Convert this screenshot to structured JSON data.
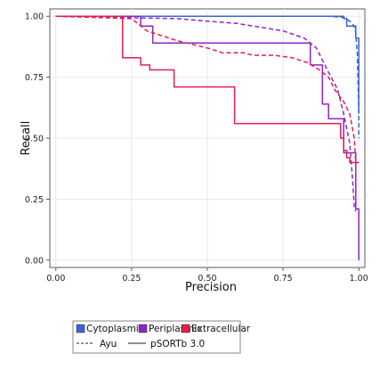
{
  "chart_data": {
    "type": "line",
    "title": "",
    "xlabel": "Precision",
    "ylabel": "Recall",
    "xlim": [
      -0.02,
      1.02
    ],
    "ylim": [
      -0.03,
      1.03
    ],
    "xticks": [
      "0.00",
      "0.25",
      "0.50",
      "0.75",
      "1.00"
    ],
    "xtick_values": [
      0,
      0.25,
      0.5,
      0.75,
      1.0
    ],
    "yticks": [
      "0.00",
      "0.25",
      "0.50",
      "0.75",
      "1.00"
    ],
    "ytick_values": [
      0,
      0.25,
      0.5,
      0.75,
      1.0
    ],
    "grid": true,
    "legend_placement": "below",
    "legend_classes": [
      {
        "name": "Cytoplasmic",
        "color": "#3a66d4"
      },
      {
        "name": "Periplasmic",
        "color": "#8e24c9"
      },
      {
        "name": "Extracellular",
        "color": "#e31e4a"
      }
    ],
    "legend_styles": [
      {
        "name": "Ayu",
        "dash": "dashed"
      },
      {
        "name": "pSORTb 3.0",
        "dash": "solid"
      }
    ],
    "series": [
      {
        "class": "Cytoplasmic",
        "method": "pSORTb 3.0",
        "color": "#3a66d4",
        "style": "solid",
        "points": [
          [
            0.0,
            1.0
          ],
          [
            0.95,
            1.0
          ],
          [
            0.95,
            0.99
          ],
          [
            0.96,
            0.99
          ],
          [
            0.96,
            0.96
          ],
          [
            0.99,
            0.96
          ],
          [
            0.99,
            0.91
          ],
          [
            1.0,
            0.91
          ],
          [
            1.0,
            0.6
          ]
        ]
      },
      {
        "class": "Cytoplasmic",
        "method": "Ayu",
        "color": "#3a66d4",
        "style": "dashed",
        "points": [
          [
            0.0,
            1.0
          ],
          [
            0.9,
            1.0
          ],
          [
            0.95,
            0.995
          ],
          [
            0.97,
            0.98
          ],
          [
            0.985,
            0.96
          ],
          [
            0.99,
            0.93
          ],
          [
            0.995,
            0.85
          ],
          [
            1.0,
            0.6
          ],
          [
            1.0,
            0.5
          ]
        ]
      },
      {
        "class": "Periplasmic",
        "method": "pSORTb 3.0",
        "color": "#8e24c9",
        "style": "solid",
        "points": [
          [
            0.0,
            1.0
          ],
          [
            0.28,
            1.0
          ],
          [
            0.28,
            0.96
          ],
          [
            0.32,
            0.96
          ],
          [
            0.32,
            0.89
          ],
          [
            0.84,
            0.89
          ],
          [
            0.84,
            0.8
          ],
          [
            0.88,
            0.8
          ],
          [
            0.88,
            0.64
          ],
          [
            0.9,
            0.64
          ],
          [
            0.9,
            0.58
          ],
          [
            0.95,
            0.58
          ],
          [
            0.95,
            0.44
          ],
          [
            0.99,
            0.44
          ],
          [
            0.99,
            0.21
          ],
          [
            1.0,
            0.21
          ],
          [
            1.0,
            0.0
          ]
        ]
      },
      {
        "class": "Periplasmic",
        "method": "Ayu",
        "color": "#8e24c9",
        "style": "dashed",
        "points": [
          [
            0.0,
            1.0
          ],
          [
            0.4,
            0.99
          ],
          [
            0.6,
            0.97
          ],
          [
            0.75,
            0.94
          ],
          [
            0.82,
            0.91
          ],
          [
            0.86,
            0.87
          ],
          [
            0.88,
            0.82
          ],
          [
            0.9,
            0.77
          ],
          [
            0.93,
            0.7
          ],
          [
            0.95,
            0.6
          ],
          [
            0.97,
            0.48
          ],
          [
            0.98,
            0.32
          ],
          [
            0.985,
            0.22
          ],
          [
            0.99,
            0.2
          ]
        ]
      },
      {
        "class": "Extracellular",
        "method": "pSORTb 3.0",
        "color": "#e31e4a",
        "style": "solid",
        "points": [
          [
            0.0,
            1.0
          ],
          [
            0.22,
            1.0
          ],
          [
            0.22,
            0.83
          ],
          [
            0.28,
            0.83
          ],
          [
            0.28,
            0.8
          ],
          [
            0.31,
            0.8
          ],
          [
            0.31,
            0.78
          ],
          [
            0.39,
            0.78
          ],
          [
            0.39,
            0.71
          ],
          [
            0.59,
            0.71
          ],
          [
            0.59,
            0.56
          ],
          [
            0.94,
            0.56
          ],
          [
            0.94,
            0.5
          ],
          [
            0.95,
            0.5
          ],
          [
            0.95,
            0.45
          ],
          [
            0.96,
            0.45
          ],
          [
            0.96,
            0.42
          ],
          [
            0.97,
            0.42
          ],
          [
            0.97,
            0.4
          ],
          [
            1.0,
            0.4
          ]
        ]
      },
      {
        "class": "Extracellular",
        "method": "Ayu",
        "color": "#e31e4a",
        "style": "dashed",
        "points": [
          [
            0.0,
            1.0
          ],
          [
            0.25,
            0.99
          ],
          [
            0.3,
            0.94
          ],
          [
            0.4,
            0.9
          ],
          [
            0.5,
            0.87
          ],
          [
            0.55,
            0.85
          ],
          [
            0.62,
            0.85
          ],
          [
            0.65,
            0.84
          ],
          [
            0.72,
            0.84
          ],
          [
            0.78,
            0.83
          ],
          [
            0.83,
            0.81
          ],
          [
            0.87,
            0.78
          ],
          [
            0.9,
            0.75
          ],
          [
            0.92,
            0.7
          ],
          [
            0.95,
            0.65
          ],
          [
            0.97,
            0.6
          ],
          [
            0.985,
            0.5
          ],
          [
            0.99,
            0.4
          ],
          [
            1.0,
            0.4
          ]
        ]
      }
    ]
  }
}
